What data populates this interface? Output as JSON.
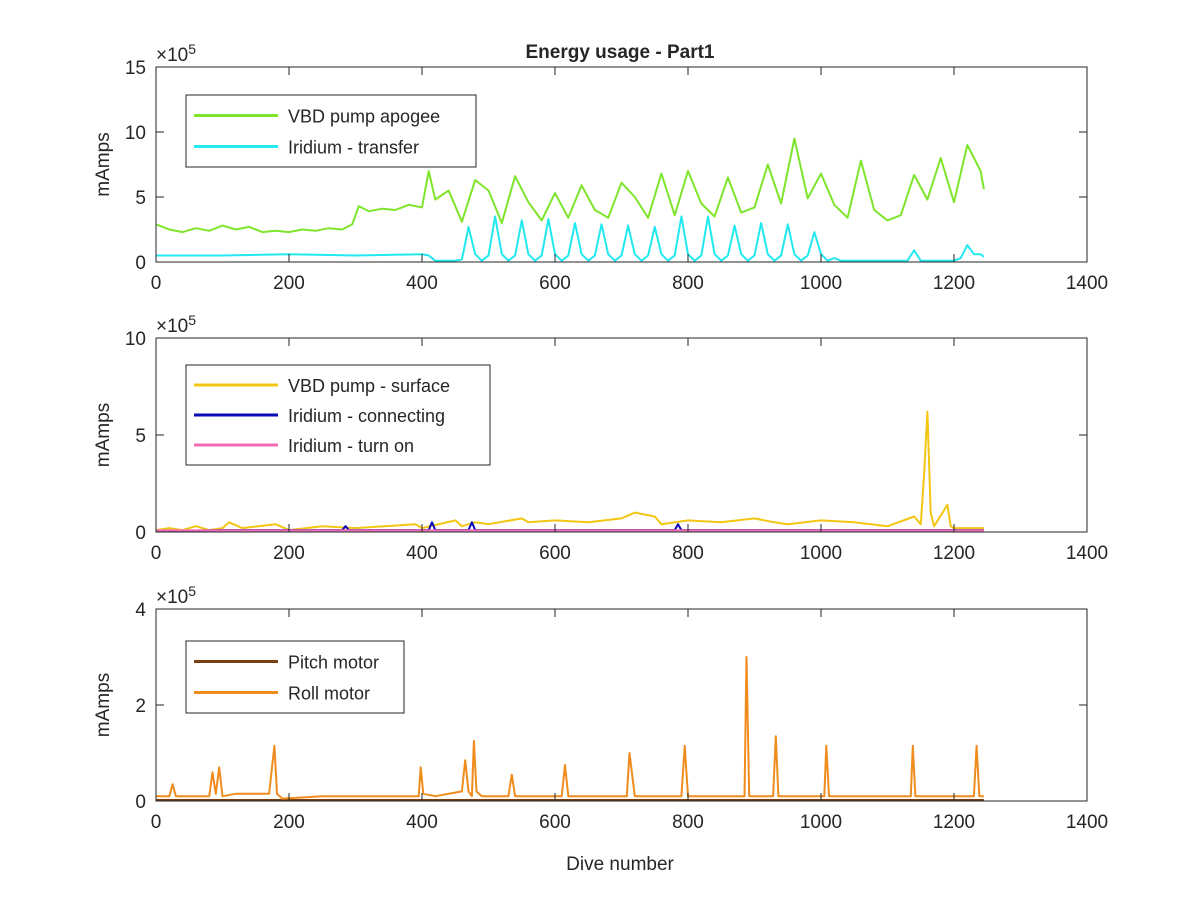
{
  "figure": {
    "title": "Energy usage - Part1",
    "xlabel": "Dive number"
  },
  "chart_data": [
    {
      "type": "line",
      "title": "Energy usage - Part1",
      "xlabel": "",
      "ylabel": "mAmps",
      "exponent_label": "×10",
      "exponent_power": "5",
      "xlim": [
        0,
        1400
      ],
      "ylim": [
        0,
        15
      ],
      "x_ticks": [
        "0",
        "200",
        "400",
        "600",
        "800",
        "1000",
        "1200",
        "1400"
      ],
      "y_ticks": [
        "0",
        "5",
        "10",
        "15"
      ],
      "grid": false,
      "legend_position": "top-left",
      "series": [
        {
          "name": "VBD pump apogee",
          "color": "#7fe52c",
          "x": [
            0,
            20,
            40,
            60,
            80,
            100,
            120,
            140,
            160,
            180,
            200,
            220,
            240,
            260,
            280,
            295,
            305,
            320,
            340,
            360,
            380,
            400,
            410,
            420,
            440,
            460,
            480,
            500,
            520,
            540,
            560,
            580,
            600,
            620,
            640,
            660,
            680,
            700,
            720,
            740,
            760,
            780,
            800,
            820,
            840,
            860,
            880,
            900,
            920,
            940,
            960,
            980,
            1000,
            1020,
            1040,
            1060,
            1080,
            1100,
            1120,
            1140,
            1160,
            1180,
            1200,
            1220,
            1240,
            1245
          ],
          "values": [
            2.9,
            2.5,
            2.3,
            2.6,
            2.4,
            2.8,
            2.5,
            2.7,
            2.3,
            2.4,
            2.3,
            2.5,
            2.4,
            2.6,
            2.5,
            2.9,
            4.3,
            3.9,
            4.1,
            4.0,
            4.4,
            4.2,
            7.0,
            4.8,
            5.5,
            3.1,
            6.3,
            5.5,
            3.0,
            6.6,
            4.6,
            3.2,
            5.3,
            3.4,
            5.9,
            4.0,
            3.4,
            6.1,
            5.0,
            3.4,
            6.8,
            3.6,
            7.0,
            4.5,
            3.5,
            6.5,
            3.8,
            4.2,
            7.5,
            4.5,
            9.5,
            4.9,
            6.8,
            4.4,
            3.4,
            7.8,
            4.0,
            3.2,
            3.6,
            6.7,
            4.8,
            8.0,
            4.6,
            9.0,
            7.0,
            5.6
          ]
        },
        {
          "name": "Iridium - transfer",
          "color": "#22e8f0",
          "x": [
            0,
            100,
            200,
            300,
            400,
            410,
            420,
            430,
            440,
            450,
            460,
            470,
            480,
            490,
            500,
            510,
            520,
            530,
            540,
            550,
            560,
            570,
            580,
            590,
            600,
            610,
            620,
            630,
            640,
            650,
            660,
            670,
            680,
            690,
            700,
            710,
            720,
            730,
            740,
            750,
            760,
            770,
            780,
            790,
            800,
            810,
            820,
            830,
            840,
            850,
            860,
            870,
            880,
            890,
            900,
            910,
            920,
            930,
            940,
            950,
            960,
            970,
            980,
            990,
            1000,
            1010,
            1020,
            1030,
            1040,
            1050,
            1060,
            1070,
            1080,
            1090,
            1100,
            1110,
            1120,
            1130,
            1140,
            1150,
            1160,
            1170,
            1180,
            1190,
            1200,
            1210,
            1220,
            1230,
            1240,
            1245
          ],
          "values": [
            0.5,
            0.5,
            0.6,
            0.5,
            0.6,
            0.5,
            0.1,
            0.1,
            0.1,
            0.1,
            0.2,
            2.7,
            0.6,
            0.1,
            0.5,
            3.5,
            0.6,
            0.1,
            0.5,
            3.2,
            0.6,
            0.1,
            0.5,
            3.3,
            0.6,
            0.1,
            0.5,
            3.0,
            0.6,
            0.1,
            0.5,
            2.9,
            0.6,
            0.1,
            0.5,
            2.8,
            0.6,
            0.1,
            0.5,
            2.7,
            0.6,
            0.1,
            0.5,
            3.5,
            0.6,
            0.1,
            0.5,
            3.5,
            0.6,
            0.1,
            0.5,
            2.8,
            0.6,
            0.1,
            0.5,
            3.0,
            0.6,
            0.1,
            0.5,
            2.9,
            0.6,
            0.1,
            0.5,
            2.3,
            0.6,
            0.1,
            0.3,
            0.1,
            0.1,
            0.1,
            0.1,
            0.1,
            0.1,
            0.1,
            0.1,
            0.1,
            0.1,
            0.1,
            0.9,
            0.1,
            0.1,
            0.1,
            0.1,
            0.1,
            0.1,
            0.3,
            1.3,
            0.6,
            0.6,
            0.4
          ]
        }
      ]
    },
    {
      "type": "line",
      "title": "",
      "xlabel": "",
      "ylabel": "mAmps",
      "exponent_label": "×10",
      "exponent_power": "5",
      "xlim": [
        0,
        1400
      ],
      "ylim": [
        0,
        10
      ],
      "x_ticks": [
        "0",
        "200",
        "400",
        "600",
        "800",
        "1000",
        "1200",
        "1400"
      ],
      "y_ticks": [
        "0",
        "5",
        "10"
      ],
      "grid": false,
      "legend_position": "top-left",
      "series": [
        {
          "name": "VBD pump - surface",
          "color": "#f3c613",
          "x": [
            0,
            20,
            40,
            60,
            80,
            100,
            110,
            130,
            180,
            200,
            250,
            300,
            390,
            400,
            450,
            460,
            480,
            500,
            550,
            560,
            600,
            650,
            700,
            720,
            750,
            760,
            800,
            850,
            900,
            930,
            950,
            1000,
            1050,
            1100,
            1140,
            1150,
            1155,
            1160,
            1165,
            1170,
            1190,
            1195,
            1200,
            1240,
            1245
          ],
          "values": [
            0.1,
            0.2,
            0.1,
            0.3,
            0.1,
            0.2,
            0.5,
            0.2,
            0.4,
            0.1,
            0.3,
            0.2,
            0.4,
            0.2,
            0.6,
            0.3,
            0.5,
            0.4,
            0.7,
            0.5,
            0.6,
            0.5,
            0.7,
            1.0,
            0.8,
            0.4,
            0.6,
            0.5,
            0.7,
            0.5,
            0.4,
            0.6,
            0.5,
            0.3,
            0.8,
            0.4,
            3.0,
            6.2,
            1.0,
            0.3,
            1.4,
            0.3,
            0.2,
            0.2,
            0.2
          ]
        },
        {
          "name": "Iridium - connecting",
          "color": "#0a0ab8",
          "x": [
            0,
            100,
            280,
            285,
            290,
            400,
            410,
            415,
            420,
            470,
            475,
            480,
            500,
            780,
            785,
            790,
            900,
            1245
          ],
          "values": [
            0.05,
            0.1,
            0.1,
            0.3,
            0.1,
            0.1,
            0.1,
            0.5,
            0.1,
            0.1,
            0.5,
            0.1,
            0.1,
            0.1,
            0.4,
            0.1,
            0.1,
            0.1
          ]
        },
        {
          "name": "Iridium - turn on",
          "color": "#f06ab4",
          "x": [
            0,
            200,
            400,
            600,
            800,
            1000,
            1200,
            1245
          ],
          "values": [
            0.08,
            0.08,
            0.08,
            0.08,
            0.08,
            0.08,
            0.08,
            0.08
          ]
        }
      ]
    },
    {
      "type": "line",
      "title": "",
      "xlabel": "Dive number",
      "ylabel": "mAmps",
      "exponent_label": "×10",
      "exponent_power": "5",
      "xlim": [
        0,
        1400
      ],
      "ylim": [
        0,
        4
      ],
      "x_ticks": [
        "0",
        "200",
        "400",
        "600",
        "800",
        "1000",
        "1200",
        "1400"
      ],
      "y_ticks": [
        "0",
        "2",
        "4"
      ],
      "grid": false,
      "legend_position": "top-left",
      "series": [
        {
          "name": "Pitch motor",
          "color": "#7b3f12",
          "x": [
            0,
            200,
            400,
            600,
            800,
            1000,
            1200,
            1245
          ],
          "values": [
            0.02,
            0.02,
            0.02,
            0.02,
            0.02,
            0.02,
            0.02,
            0.02
          ]
        },
        {
          "name": "Roll motor",
          "color": "#f08c1e",
          "x": [
            0,
            20,
            25,
            30,
            60,
            80,
            85,
            90,
            95,
            100,
            120,
            170,
            178,
            182,
            190,
            250,
            350,
            395,
            398,
            402,
            420,
            460,
            465,
            470,
            475,
            478,
            482,
            490,
            530,
            535,
            540,
            610,
            615,
            620,
            700,
            708,
            712,
            720,
            780,
            790,
            795,
            800,
            880,
            885,
            888,
            892,
            900,
            928,
            932,
            936,
            1000,
            1005,
            1008,
            1012,
            1100,
            1135,
            1138,
            1142,
            1200,
            1230,
            1234,
            1238,
            1245
          ],
          "values": [
            0.1,
            0.1,
            0.35,
            0.1,
            0.1,
            0.1,
            0.6,
            0.15,
            0.7,
            0.1,
            0.15,
            0.15,
            1.15,
            0.15,
            0.05,
            0.1,
            0.1,
            0.1,
            0.7,
            0.15,
            0.1,
            0.2,
            0.85,
            0.2,
            0.1,
            1.25,
            0.2,
            0.1,
            0.1,
            0.55,
            0.1,
            0.1,
            0.75,
            0.1,
            0.1,
            0.1,
            1.0,
            0.1,
            0.1,
            0.1,
            1.15,
            0.1,
            0.1,
            0.1,
            3.0,
            0.1,
            0.1,
            0.1,
            1.35,
            0.1,
            0.1,
            0.1,
            1.15,
            0.1,
            0.1,
            0.1,
            1.15,
            0.1,
            0.1,
            0.1,
            1.15,
            0.1,
            0.1
          ]
        }
      ]
    }
  ]
}
